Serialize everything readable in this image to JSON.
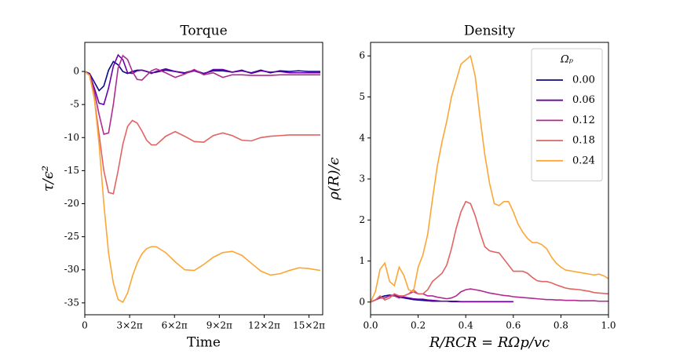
{
  "chart_data": [
    {
      "type": "line",
      "title": "Torque",
      "xlabel": "Time",
      "ylabel": "τ/ϵ²",
      "xlim": [
        0,
        100
      ],
      "ylim": [
        -36.8,
        4.4
      ],
      "xticks": [
        0,
        {
          "value": 18.85,
          "label": "3×2π"
        },
        {
          "value": 37.7,
          "label": "6×2π"
        },
        {
          "value": 56.55,
          "label": "9×2π"
        },
        {
          "value": 75.4,
          "label": "12×2π"
        },
        {
          "value": 94.25,
          "label": "15×2π"
        }
      ],
      "yticks": [
        0,
        -5,
        -10,
        -15,
        -20,
        -25,
        -30,
        -35
      ],
      "x": [
        0,
        2,
        4,
        6,
        8,
        10,
        12,
        14,
        16,
        18,
        20,
        22,
        24,
        26,
        28,
        30,
        34,
        38,
        42,
        46,
        50,
        54,
        58,
        62,
        66,
        70,
        74,
        78,
        82,
        86,
        90,
        94,
        99
      ],
      "series": [
        {
          "color": "#0d0887",
          "values": [
            0,
            -0.3,
            -1.6,
            -2.9,
            -2.2,
            0.2,
            1.5,
            1.0,
            0.0,
            -0.3,
            0,
            0.2,
            0.2,
            0,
            -0.2,
            -0.1,
            0.2,
            0,
            -0.2,
            0.2,
            -0.3,
            0.1,
            0.1,
            -0.1,
            0.1,
            -0.2,
            0.2,
            -0.2,
            0.1,
            0,
            0.1,
            0,
            0
          ]
        },
        {
          "color": "#6a00a8",
          "values": [
            0,
            -0.4,
            -2.5,
            -4.8,
            -5.0,
            -2.5,
            0.8,
            2.5,
            1.8,
            -0.2,
            -0.3,
            0.1,
            0.2,
            0,
            -0.3,
            0,
            0.4,
            0,
            -0.3,
            0.1,
            -0.4,
            0.3,
            0.3,
            -0.1,
            0.2,
            -0.3,
            0.1,
            -0.1,
            0,
            -0.2,
            -0.2,
            -0.2,
            -0.2
          ]
        },
        {
          "color": "#b12a90",
          "values": [
            0,
            -0.5,
            -3,
            -6.5,
            -9.5,
            -9.3,
            -5,
            0.5,
            2.4,
            1.8,
            0,
            -1.2,
            -1.3,
            -0.6,
            0.1,
            0.4,
            -0.2,
            -0.9,
            -0.4,
            0.3,
            -0.5,
            -0.2,
            -0.9,
            -0.5,
            -0.5,
            -0.6,
            -0.6,
            -0.6,
            -0.5,
            -0.5,
            -0.5,
            -0.5,
            -0.5
          ]
        },
        {
          "color": "#e16462",
          "values": [
            0,
            -0.6,
            -4,
            -9.5,
            -15,
            -18.3,
            -18.5,
            -15,
            -11,
            -8.3,
            -7.4,
            -7.8,
            -9,
            -10.4,
            -11.1,
            -11.1,
            -9.8,
            -9.1,
            -9.8,
            -10.6,
            -10.7,
            -9.7,
            -9.3,
            -9.7,
            -10.4,
            -10.5,
            -10,
            -9.8,
            -9.7,
            -9.6,
            -9.6,
            -9.6,
            -9.6
          ]
        },
        {
          "color": "#fca636",
          "values": [
            0,
            -0.6,
            -4,
            -11,
            -20,
            -27.5,
            -32,
            -34.5,
            -34.9,
            -33.5,
            -31,
            -29,
            -27.6,
            -26.8,
            -26.5,
            -26.5,
            -27.4,
            -28.8,
            -30,
            -30.1,
            -29.2,
            -28.1,
            -27.4,
            -27.2,
            -27.8,
            -29,
            -30.2,
            -30.8,
            -30.6,
            -30.1,
            -29.7,
            -29.8,
            -30.1
          ]
        }
      ]
    },
    {
      "type": "line",
      "title": "Density",
      "xlabel": "R/RCR = RΩp/vc",
      "ylabel": "ρ(R)/ϵ",
      "xlim": [
        0,
        1
      ],
      "ylim": [
        -0.31,
        6.33
      ],
      "xticks": [
        {
          "value": 0,
          "label": "0.0"
        },
        {
          "value": 0.2,
          "label": "0.2"
        },
        {
          "value": 0.4,
          "label": "0.4"
        },
        {
          "value": 0.6,
          "label": "0.6"
        },
        {
          "value": 0.8,
          "label": "0.8"
        },
        {
          "value": 1,
          "label": "1.0"
        }
      ],
      "yticks": [
        0,
        1,
        2,
        3,
        4,
        5,
        6
      ],
      "legend": "upper right",
      "legend_title": "Ωₚ",
      "x": [
        0,
        0.02,
        0.04,
        0.06,
        0.08,
        0.1,
        0.12,
        0.14,
        0.16,
        0.18,
        0.2,
        0.22,
        0.24,
        0.26,
        0.28,
        0.3,
        0.32,
        0.34,
        0.36,
        0.38,
        0.4,
        0.42,
        0.44,
        0.46,
        0.48,
        0.5,
        0.52,
        0.54,
        0.56,
        0.58,
        0.6,
        0.62,
        0.64,
        0.66,
        0.68,
        0.7,
        0.72,
        0.74,
        0.76,
        0.78,
        0.8,
        0.82,
        0.84,
        0.86,
        0.88,
        0.9,
        0.92,
        0.94,
        0.96,
        0.98,
        1.0
      ],
      "series": [
        {
          "name": "0.00",
          "color": "#0d0887",
          "values": [
            0,
            0.05,
            0.12,
            0.15,
            0.17,
            0.15,
            0.12,
            0.1,
            0.08,
            0.06,
            0.05,
            0.04,
            0.03,
            0.02,
            0.02,
            0.02,
            0.02,
            0.01,
            0.01,
            0.01,
            0.01,
            0.01,
            0.01,
            0.01,
            0.01,
            0.01,
            0.01,
            0.01,
            0.01,
            0.01,
            0.01,
            null,
            null,
            null,
            null,
            null,
            null,
            null,
            null,
            null,
            null,
            null,
            null,
            null,
            null,
            null,
            null,
            null,
            null,
            null,
            null
          ]
        },
        {
          "name": "0.06",
          "color": "#6a00a8",
          "values": [
            0,
            0.05,
            0.1,
            0.1,
            0.15,
            0.18,
            0.15,
            0.12,
            0.1,
            0.08,
            0.07,
            0.07,
            0.05,
            0.04,
            0.03,
            0.02,
            0.02,
            0.02,
            0.02,
            0.01,
            0.01,
            0.01,
            0.01,
            0.01,
            0.01,
            0.01,
            0.01,
            0.01,
            0.01,
            0.01,
            0.01,
            null,
            null,
            null,
            null,
            null,
            null,
            null,
            null,
            null,
            null,
            null,
            null,
            null,
            null,
            null,
            null,
            null,
            null,
            null,
            null
          ]
        },
        {
          "name": "0.12",
          "color": "#b12a90",
          "values": [
            0,
            0.05,
            0.1,
            0.1,
            0.15,
            0.15,
            0.1,
            0.15,
            0.2,
            0.25,
            0.2,
            0.2,
            0.15,
            0.15,
            0.12,
            0.1,
            0.08,
            0.1,
            0.15,
            0.25,
            0.3,
            0.32,
            0.3,
            0.28,
            0.25,
            0.22,
            0.2,
            0.18,
            0.16,
            0.15,
            0.13,
            0.12,
            0.11,
            0.1,
            0.09,
            0.08,
            0.07,
            0.06,
            0.06,
            0.05,
            0.05,
            0.04,
            0.04,
            0.04,
            0.03,
            0.03,
            0.03,
            0.03,
            0.02,
            0.02,
            0.02
          ]
        },
        {
          "name": "0.18",
          "color": "#e16462",
          "values": [
            0,
            0.05,
            0.15,
            0.05,
            0.1,
            0.2,
            0.15,
            0.15,
            0.2,
            0.3,
            0.2,
            0.2,
            0.3,
            0.5,
            0.6,
            0.7,
            0.9,
            1.3,
            1.8,
            2.2,
            2.45,
            2.4,
            2.1,
            1.7,
            1.35,
            1.25,
            1.22,
            1.2,
            1.05,
            0.9,
            0.75,
            0.75,
            0.75,
            0.7,
            0.6,
            0.52,
            0.5,
            0.5,
            0.47,
            0.42,
            0.38,
            0.34,
            0.32,
            0.31,
            0.3,
            0.28,
            0.26,
            0.23,
            0.22,
            0.21,
            0.2
          ]
        },
        {
          "name": "0.24",
          "color": "#fca636",
          "values": [
            0,
            0.25,
            0.8,
            0.95,
            0.5,
            0.4,
            0.85,
            0.65,
            0.3,
            0.25,
            0.85,
            1.15,
            1.65,
            2.5,
            3.3,
            3.9,
            4.4,
            5.0,
            5.4,
            5.8,
            5.9,
            6.0,
            5.5,
            4.5,
            3.6,
            2.9,
            2.4,
            2.35,
            2.45,
            2.45,
            2.2,
            1.9,
            1.7,
            1.55,
            1.45,
            1.45,
            1.4,
            1.3,
            1.1,
            0.95,
            0.85,
            0.78,
            0.76,
            0.74,
            0.72,
            0.7,
            0.68,
            0.66,
            0.68,
            0.64,
            0.57
          ]
        }
      ]
    }
  ]
}
